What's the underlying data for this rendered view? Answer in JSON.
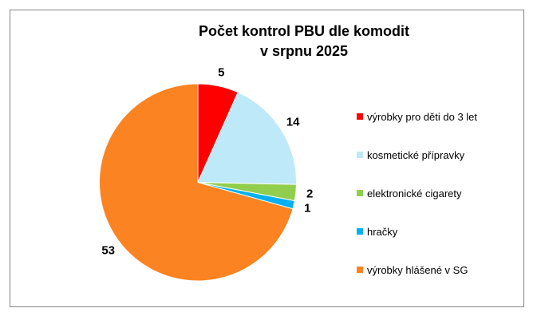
{
  "frame": {
    "border_color": "#858585",
    "background": "#FFFFFF"
  },
  "chart_data": {
    "type": "pie",
    "title": "Počet kontrol PBU dle komodit v srpnu 2025",
    "title_lines": [
      "Počet kontrol PBU dle komodit",
      "v srpnu 2025"
    ],
    "categories": [
      "výrobky pro děti do 3 let",
      "kosmetické přípravky",
      "elektronické cigarety",
      "hračky",
      "výrobky hlášené v SG"
    ],
    "values": [
      5,
      14,
      2,
      1,
      53
    ],
    "colors": [
      "#FF0000",
      "#BEE9F8",
      "#92CE4E",
      "#00B0F0",
      "#FB8321"
    ],
    "total": 75,
    "start_angle_deg": 0,
    "direction": "clockwise",
    "data_labels": "outside-end",
    "legend_position": "right",
    "slice_border_color": "#FFFFFF"
  }
}
